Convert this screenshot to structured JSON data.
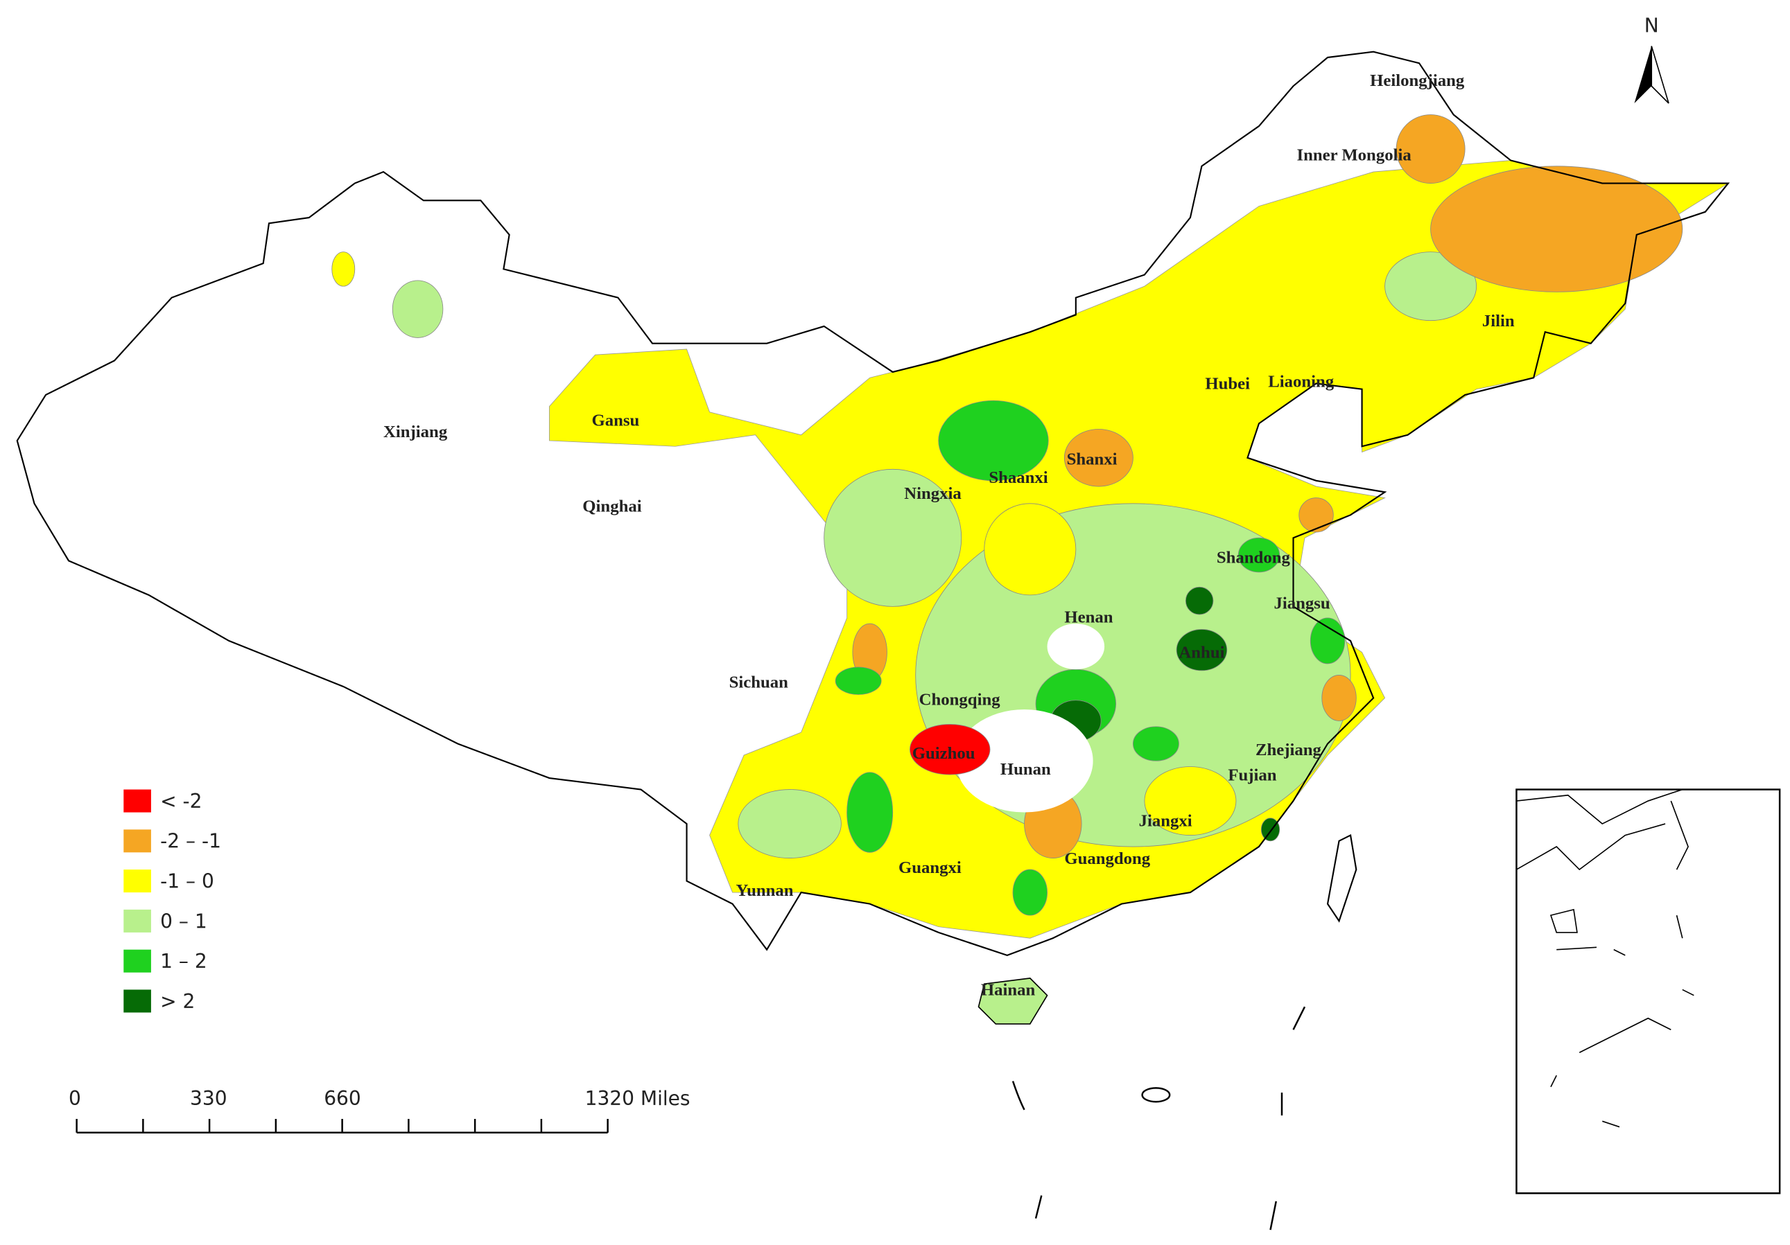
{
  "provinces": [
    "Heilongjiang",
    "Inner Mongolia",
    "Jilin",
    "Liaoning",
    "Hubei",
    "Xinjiang",
    "Gansu",
    "Qinghai",
    "Shanxi",
    "Shaanxi",
    "Ningxia",
    "Shandong",
    "Jiangsu",
    "Henan",
    "Anhui",
    "Sichuan",
    "Chongqing",
    "Guizhou",
    "Hunan",
    "Zhejiang",
    "Fujian",
    "Jiangxi",
    "Guangdong",
    "Guangxi",
    "Yunnan",
    "Hainan"
  ],
  "legend": [
    {
      "label": "< -2",
      "color": "#ff0000"
    },
    {
      "label": "-2 – -1",
      "color": "#f5a623"
    },
    {
      "label": "-1 – 0",
      "color": "#ffff00"
    },
    {
      "label": "0 – 1",
      "color": "#b8f08c"
    },
    {
      "label": "1 – 2",
      "color": "#1fd11f"
    },
    {
      "label": "> 2",
      "color": "#066b06"
    }
  ],
  "scale_bar": {
    "labels": [
      "0",
      "330",
      "660",
      "1320 Miles"
    ]
  },
  "north": "N"
}
